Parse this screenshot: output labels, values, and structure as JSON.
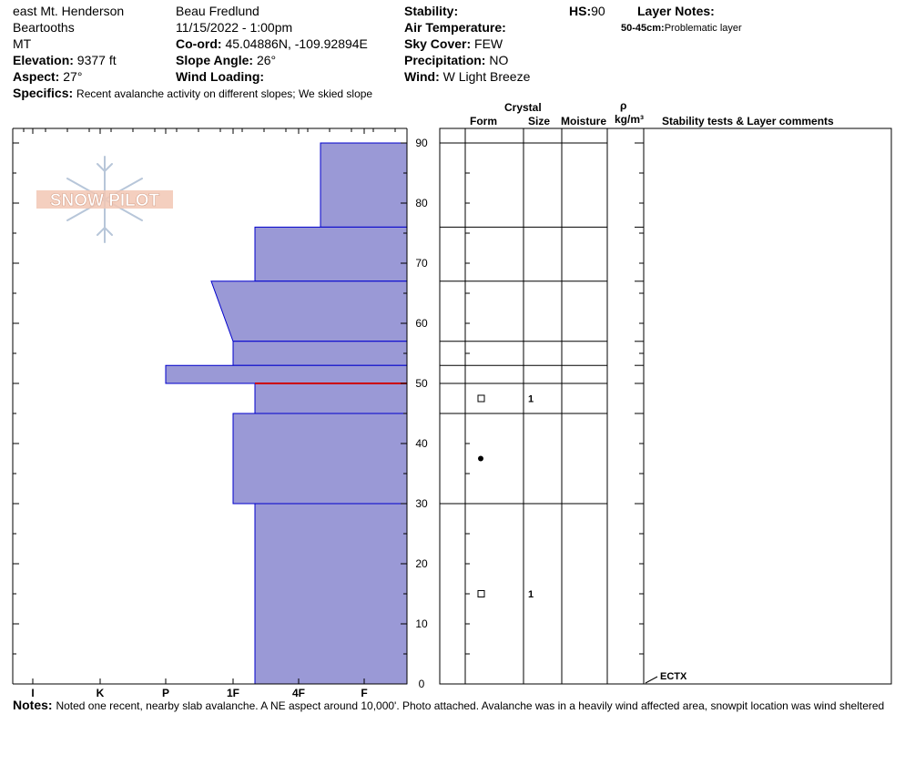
{
  "header": {
    "location": "east Mt. Henderson",
    "range": "Beartooths",
    "state": "MT",
    "elevation_label": "Elevation:",
    "elevation_value": "9377 ft",
    "aspect_label": "Aspect:",
    "aspect_value": "27°",
    "observer": "Beau  Fredlund",
    "datetime": "11/15/2022 - 1:00pm",
    "coord_label": "Co-ord:",
    "coord_value": "45.04886N, -109.92894E",
    "slope_label": "Slope Angle:",
    "slope_value": "26°",
    "wind_loading_label": "Wind Loading:",
    "wind_loading_value": "",
    "stability_label": "Stability:",
    "stability_value": "",
    "air_temp_label": "Air Temperature:",
    "air_temp_value": "",
    "sky_label": "Sky Cover:",
    "sky_value": "FEW",
    "precip_label": "Precipitation:",
    "precip_value": "NO",
    "wind_label": "Wind:",
    "wind_value": "W Light Breeze",
    "hs_label": "HS:",
    "hs_value": "90",
    "layer_notes_label": "Layer Notes:",
    "layer_note_range": "50-45cm:",
    "layer_note_text": "Problematic layer",
    "specifics_label": "Specifics:",
    "specifics_text": "Recent avalanche activity on different slopes; We skied slope"
  },
  "logo": {
    "text": "SNOW PILOT"
  },
  "columns": {
    "crystal": "Crystal",
    "form": "Form",
    "size": "Size",
    "moisture": "Moisture",
    "rho": "ρ",
    "density_unit": "kg/m³",
    "stability_comments": "Stability tests & Layer comments"
  },
  "notes": {
    "label": "Notes:",
    "text": "Noted one recent, nearby slab avalanche.  A NE aspect around 10,000'.  Photo attached.  Avalanche was in a heavily wind affected area, snowpit location was wind sheltered"
  },
  "colors": {
    "profile_fill": "#9a99d6",
    "profile_edge": "#0000cc",
    "problem_layer": "#cc0000"
  },
  "chart_data": {
    "type": "snow-profile",
    "y_axis": {
      "label": "",
      "range": [
        0,
        90
      ],
      "ticks": [
        0,
        10,
        20,
        30,
        40,
        50,
        60,
        70,
        80,
        90
      ]
    },
    "hardness_scale": [
      "I",
      "K",
      "P",
      "1F",
      "4F",
      "F"
    ],
    "hardness_layers": [
      {
        "top": 90,
        "bottom": 76,
        "hardness_top": "4F-",
        "hardness_bottom": "4F-"
      },
      {
        "top": 76,
        "bottom": 67,
        "hardness_top": "1F-",
        "hardness_bottom": "1F-"
      },
      {
        "top": 67,
        "bottom": 57,
        "hardness_top": "1F+",
        "hardness_bottom": "1F"
      },
      {
        "top": 57,
        "bottom": 53,
        "hardness_top": "1F",
        "hardness_bottom": "1F"
      },
      {
        "top": 53,
        "bottom": 50,
        "hardness_top": "P",
        "hardness_bottom": "P"
      },
      {
        "top": 50,
        "bottom": 45,
        "hardness_top": "1F-",
        "hardness_bottom": "1F-"
      },
      {
        "top": 45,
        "bottom": 30,
        "hardness_top": "1F",
        "hardness_bottom": "1F"
      },
      {
        "top": 30,
        "bottom": 0,
        "hardness_top": "1F-",
        "hardness_bottom": "1F-"
      }
    ],
    "problem_layer_height": 50,
    "layer_boundaries": [
      90,
      76,
      67,
      57,
      53,
      50,
      45,
      30
    ],
    "grain_forms": [
      {
        "height": 47.5,
        "form": "faceted",
        "size": "1"
      },
      {
        "height": 37.5,
        "form": "rounded",
        "size": ""
      },
      {
        "height": 15,
        "form": "faceted",
        "size": "1"
      }
    ],
    "stability_tests": [
      {
        "height": 0,
        "label": "ECTX"
      }
    ]
  }
}
